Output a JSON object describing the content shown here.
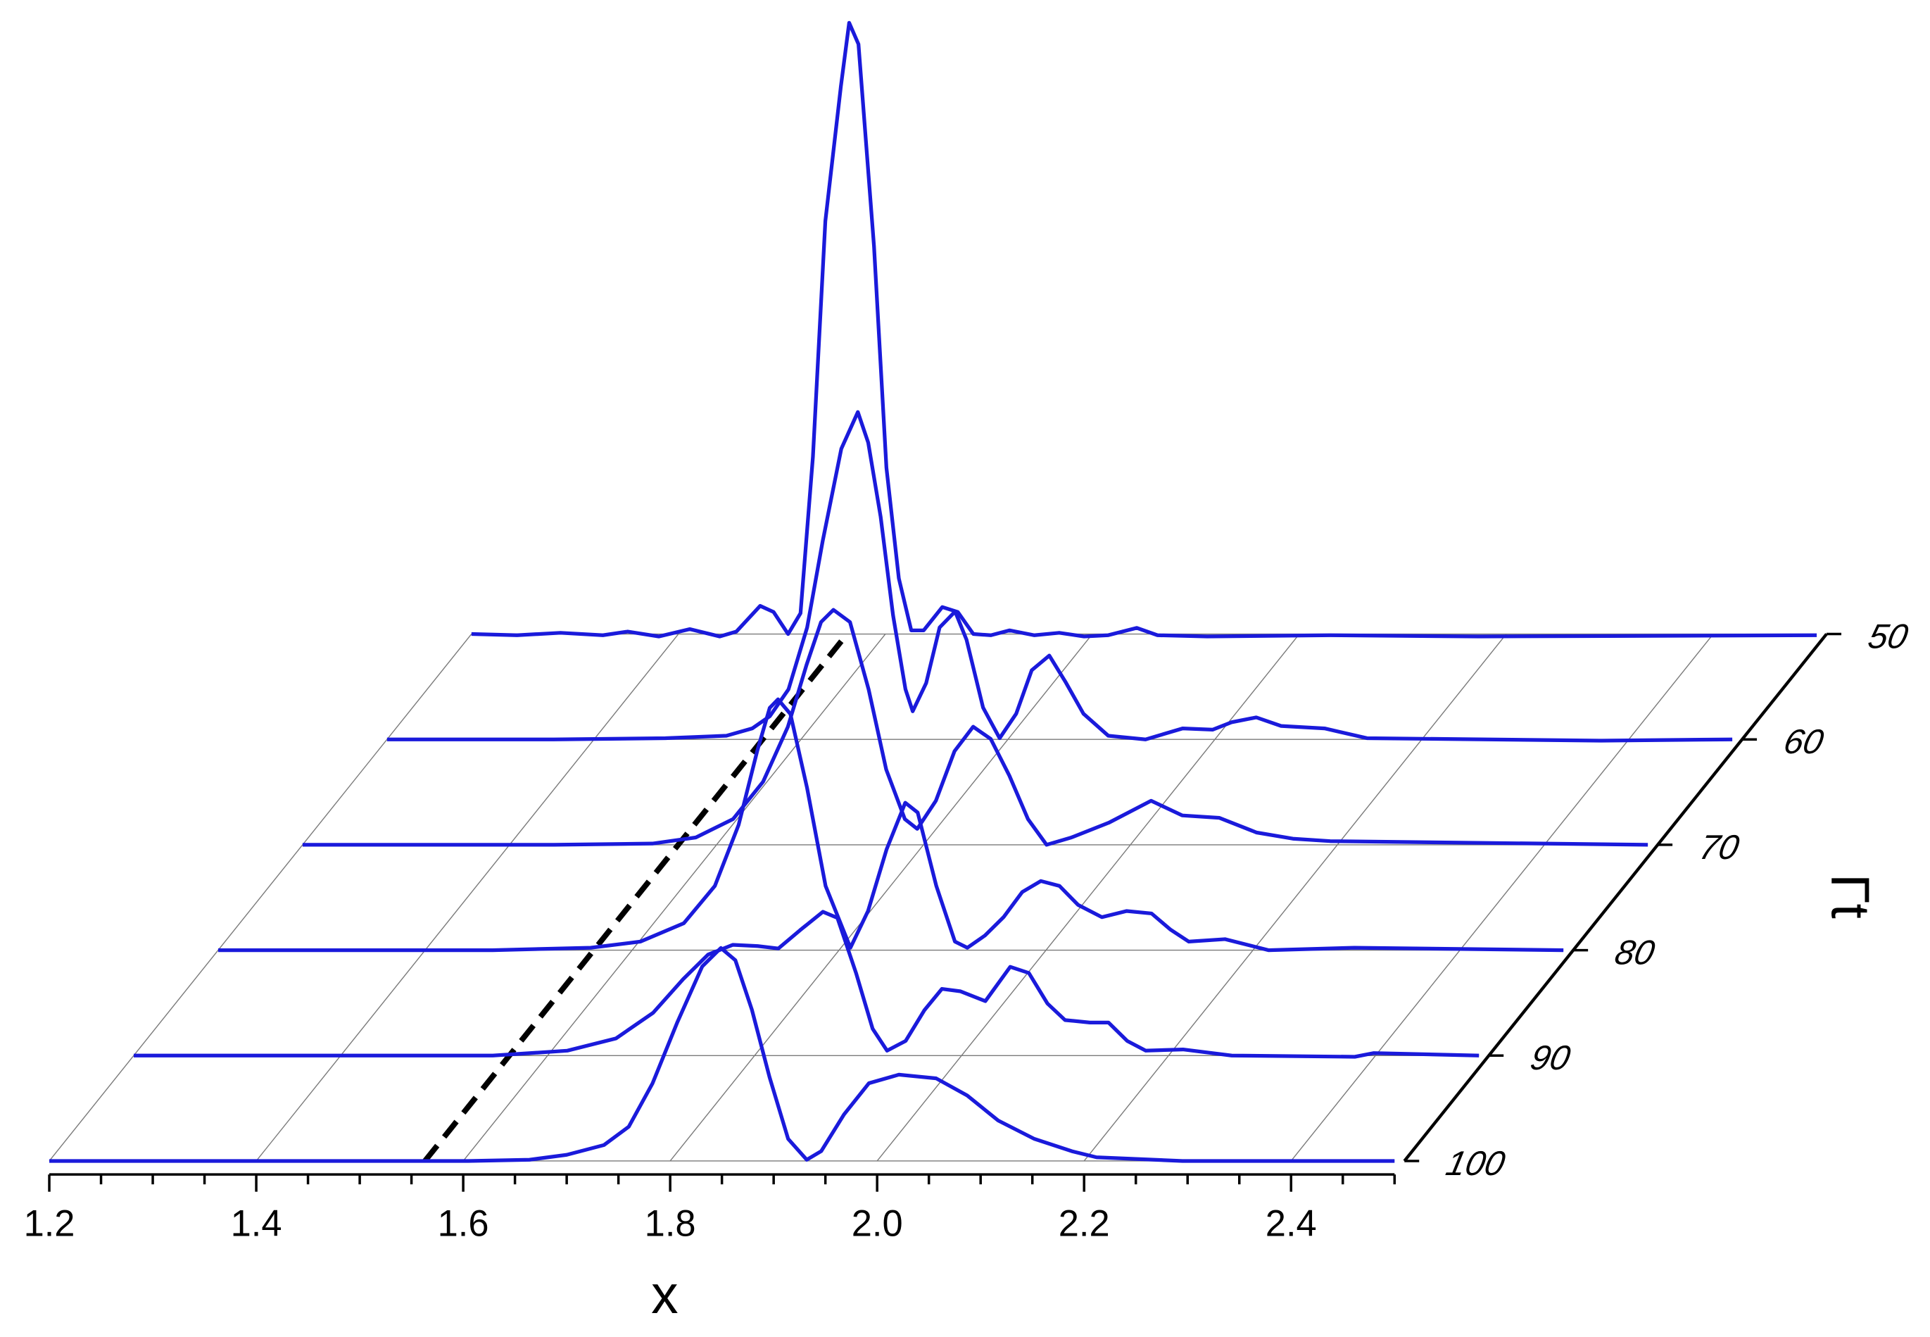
{
  "chart_data": {
    "type": "waterfall",
    "xlabel": "x",
    "ylabel": "Γt",
    "xlim": [
      1.2,
      2.5
    ],
    "xticks": [
      1.2,
      1.4,
      1.6,
      1.8,
      {
        "value": 2,
        "label": "2.0"
      },
      2.2,
      2.4
    ],
    "xminorticks": [
      1.25,
      1.3,
      1.35,
      1.45,
      1.5,
      1.55,
      1.65,
      1.7,
      1.75,
      1.85,
      1.9,
      1.95,
      2.05,
      2.1,
      2.15,
      2.25,
      2.3,
      2.35,
      2.45,
      2.5
    ],
    "ylim": [
      50,
      100
    ],
    "yticks": [
      50,
      60,
      70,
      80,
      90,
      100
    ],
    "grid": true,
    "reference_line": {
      "x": 1.563,
      "color": "#000000"
    },
    "series": [
      {
        "t": 50,
        "color": "#1a1adb",
        "x": [
          1.2,
          1.244,
          1.286,
          1.327,
          1.351,
          1.381,
          1.411,
          1.44,
          1.456,
          1.479,
          1.492,
          1.506,
          1.518,
          1.53,
          1.542,
          1.557,
          1.565,
          1.574,
          1.589,
          1.601,
          1.613,
          1.625,
          1.637,
          1.655,
          1.67,
          1.685,
          1.702,
          1.72,
          1.744,
          1.768,
          1.792,
          1.815,
          1.843,
          1.863,
          1.911,
          2.03,
          2.173,
          2.5
        ],
        "values": [
          0,
          -0.002,
          0.002,
          -0.002,
          0.004,
          -0.004,
          0.008,
          -0.004,
          0.004,
          0.046,
          0.036,
          0,
          0.034,
          0.29,
          0.675,
          0.895,
          0.999,
          0.964,
          0.634,
          0.272,
          0.091,
          0.006,
          0.006,
          0.044,
          0.036,
          0,
          -0.002,
          0.006,
          -0.002,
          0.002,
          -0.004,
          -0.002,
          0.01,
          -0.002,
          -0.004,
          -0.002,
          -0.004,
          -0.002
        ]
      },
      {
        "t": 60,
        "color": "#1a1adb",
        "x": [
          1.2,
          1.361,
          1.469,
          1.528,
          1.553,
          1.57,
          1.588,
          1.606,
          1.621,
          1.639,
          1.655,
          1.665,
          1.677,
          1.689,
          1.701,
          1.708,
          1.721,
          1.734,
          1.749,
          1.76,
          1.776,
          1.792,
          1.808,
          1.823,
          1.84,
          1.856,
          1.873,
          1.897,
          1.933,
          1.969,
          1.998,
          2.016,
          2.04,
          2.064,
          2.106,
          2.147,
          2.373,
          2.5
        ],
        "values": [
          0,
          0,
          0.002,
          0.006,
          0.018,
          0.038,
          0.082,
          0.183,
          0.324,
          0.475,
          0.535,
          0.485,
          0.364,
          0.203,
          0.082,
          0.046,
          0.092,
          0.183,
          0.209,
          0.163,
          0.052,
          0.002,
          0.042,
          0.113,
          0.137,
          0.093,
          0.042,
          0.006,
          0,
          0.018,
          0.016,
          0.028,
          0.036,
          0.022,
          0.018,
          0.002,
          -0.002,
          0
        ]
      },
      {
        "t": 70,
        "color": "#1a1adb",
        "x": [
          1.2,
          1.443,
          1.538,
          1.58,
          1.616,
          1.645,
          1.669,
          1.687,
          1.701,
          1.713,
          1.729,
          1.747,
          1.764,
          1.782,
          1.794,
          1.812,
          1.83,
          1.848,
          1.865,
          1.883,
          1.901,
          1.919,
          1.943,
          1.979,
          2.02,
          2.05,
          2.086,
          2.122,
          2.157,
          2.193,
          2.5
        ],
        "values": [
          0,
          0,
          0.002,
          0.012,
          0.042,
          0.103,
          0.193,
          0.294,
          0.364,
          0.384,
          0.364,
          0.254,
          0.123,
          0.042,
          0.026,
          0.072,
          0.153,
          0.193,
          0.173,
          0.113,
          0.042,
          0,
          0.012,
          0.036,
          0.072,
          0.048,
          0.044,
          0.02,
          0.01,
          0.006,
          0
        ]
      },
      {
        "t": 80,
        "color": "#1a1adb",
        "x": [
          1.2,
          1.465,
          1.56,
          1.608,
          1.65,
          1.68,
          1.703,
          1.721,
          1.733,
          1.741,
          1.753,
          1.769,
          1.787,
          1.811,
          1.828,
          1.846,
          1.864,
          1.876,
          1.894,
          1.912,
          1.924,
          1.941,
          1.959,
          1.977,
          1.995,
          2.013,
          2.031,
          2.054,
          2.078,
          2.102,
          2.12,
          2.138,
          2.173,
          2.215,
          2.298,
          2.5
        ],
        "values": [
          0,
          0,
          0.004,
          0.014,
          0.044,
          0.105,
          0.205,
          0.326,
          0.396,
          0.41,
          0.386,
          0.266,
          0.105,
          0.004,
          0.064,
          0.165,
          0.241,
          0.225,
          0.105,
          0.014,
          0.004,
          0.024,
          0.054,
          0.095,
          0.113,
          0.105,
          0.074,
          0.054,
          0.064,
          0.06,
          0.034,
          0.014,
          0.018,
          0,
          0.004,
          0
        ]
      },
      {
        "t": 90,
        "color": "#1a1adb",
        "x": [
          1.2,
          1.547,
          1.619,
          1.666,
          1.702,
          1.731,
          1.755,
          1.779,
          1.803,
          1.823,
          1.844,
          1.866,
          1.88,
          1.898,
          1.914,
          1.928,
          1.946,
          1.964,
          1.981,
          1.999,
          2.023,
          2.047,
          2.065,
          2.083,
          2.1,
          2.124,
          2.142,
          2.16,
          2.178,
          2.214,
          2.261,
          2.38,
          2.398,
          2.5
        ],
        "values": [
          0,
          0,
          0.008,
          0.028,
          0.07,
          0.125,
          0.165,
          0.181,
          0.179,
          0.175,
          0.205,
          0.235,
          0.225,
          0.135,
          0.044,
          0.008,
          0.024,
          0.074,
          0.109,
          0.105,
          0.089,
          0.145,
          0.135,
          0.085,
          0.058,
          0.054,
          0.054,
          0.024,
          0.008,
          0.01,
          0,
          -0.002,
          0.004,
          0
        ]
      },
      {
        "t": 100,
        "color": "#1a1adb",
        "x": [
          1.2,
          1.605,
          1.664,
          1.7,
          1.736,
          1.76,
          1.783,
          1.807,
          1.831,
          1.849,
          1.863,
          1.879,
          1.896,
          1.914,
          1.932,
          1.946,
          1.968,
          1.992,
          2.021,
          2.057,
          2.087,
          2.117,
          2.152,
          2.188,
          2.212,
          2.295,
          2.5
        ],
        "values": [
          0,
          0,
          0.002,
          0.01,
          0.026,
          0.056,
          0.127,
          0.227,
          0.318,
          0.348,
          0.328,
          0.247,
          0.137,
          0.036,
          0.002,
          0.016,
          0.076,
          0.127,
          0.141,
          0.135,
          0.107,
          0.066,
          0.036,
          0.016,
          0.006,
          0,
          0
        ]
      }
    ]
  }
}
